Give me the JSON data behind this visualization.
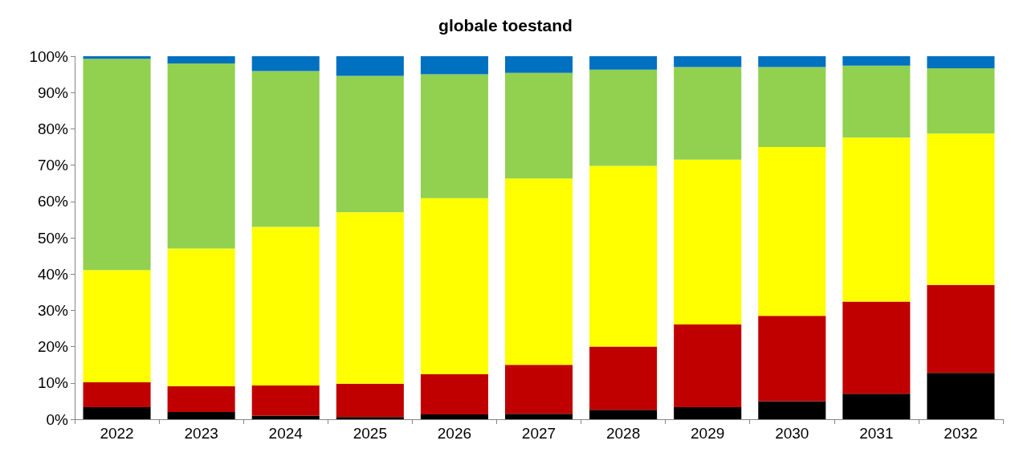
{
  "chart_data": {
    "type": "bar",
    "title": "globale toestand",
    "stacked": true,
    "categories": [
      "2022",
      "2023",
      "2024",
      "2025",
      "2026",
      "2027",
      "2028",
      "2029",
      "2030",
      "2031",
      "2032"
    ],
    "series": [
      {
        "color": "#000000",
        "values": [
          3.3,
          2,
          1,
          0.6,
          1.3,
          1.5,
          2.6,
          3.3,
          5,
          7,
          12.8
        ]
      },
      {
        "color": "#c00000",
        "values": [
          6.9,
          7.1,
          8.3,
          9.2,
          11.1,
          13.5,
          17.4,
          22.8,
          23.5,
          25.4,
          24.2
        ]
      },
      {
        "color": "#ffff00",
        "values": [
          30.9,
          37.9,
          43.7,
          47.2,
          48.5,
          51.3,
          49.8,
          45.4,
          46.5,
          45.2,
          41.7
        ]
      },
      {
        "color": "#92d050",
        "values": [
          58.2,
          51,
          42.9,
          37.6,
          34.1,
          29.1,
          26.5,
          25.5,
          22,
          19.8,
          18
        ]
      },
      {
        "color": "#0070c0",
        "values": [
          0.7,
          2,
          4.1,
          5.4,
          5,
          4.6,
          3.7,
          3,
          3,
          2.6,
          3.3
        ]
      }
    ],
    "ylim": [
      0,
      100
    ],
    "yticks": [
      {
        "value": 0,
        "label": "0%"
      },
      {
        "value": 10,
        "label": "10%"
      },
      {
        "value": 20,
        "label": "20%"
      },
      {
        "value": 30,
        "label": "30%"
      },
      {
        "value": 40,
        "label": "40%"
      },
      {
        "value": 50,
        "label": "50%"
      },
      {
        "value": 60,
        "label": "60%"
      },
      {
        "value": 70,
        "label": "70%"
      },
      {
        "value": 80,
        "label": "80%"
      },
      {
        "value": 90,
        "label": "90%"
      },
      {
        "value": 100,
        "label": "100%"
      }
    ],
    "grid": false
  }
}
